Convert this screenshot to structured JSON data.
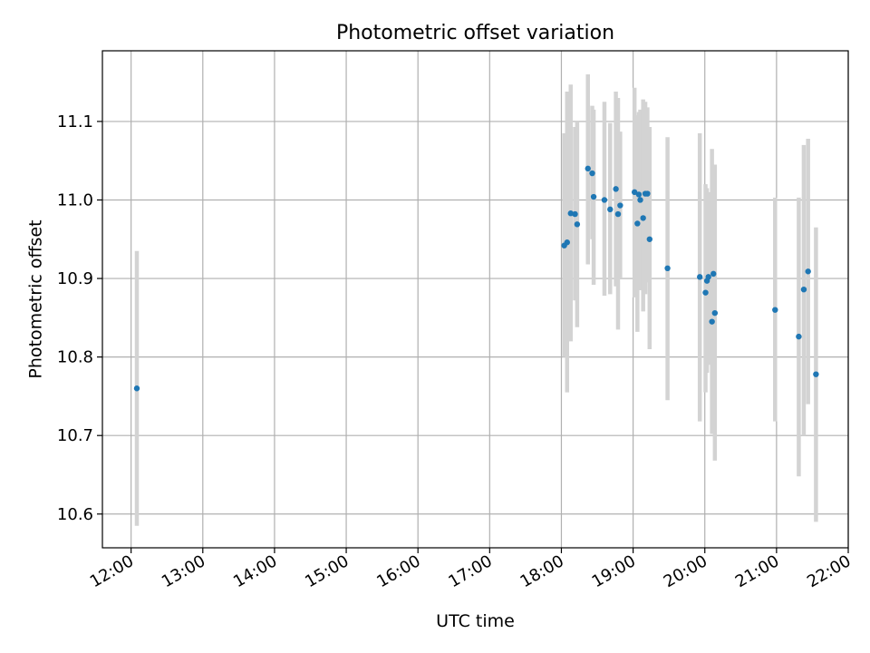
{
  "chart_data": {
    "type": "scatter",
    "title": "Photometric offset variation",
    "xlabel": "UTC time",
    "ylabel": "Photometric offset",
    "x_unit": "hours UTC",
    "xlim": [
      11.6,
      22.0
    ],
    "ylim": [
      10.557,
      11.19
    ],
    "grid": true,
    "legend": "none",
    "xticks": [
      {
        "value": 12,
        "label": "12:00"
      },
      {
        "value": 13,
        "label": "13:00"
      },
      {
        "value": 14,
        "label": "14:00"
      },
      {
        "value": 15,
        "label": "15:00"
      },
      {
        "value": 16,
        "label": "16:00"
      },
      {
        "value": 17,
        "label": "17:00"
      },
      {
        "value": 18,
        "label": "18:00"
      },
      {
        "value": 19,
        "label": "19:00"
      },
      {
        "value": 20,
        "label": "20:00"
      },
      {
        "value": 21,
        "label": "21:00"
      },
      {
        "value": 22,
        "label": "22:00"
      }
    ],
    "yticks": [
      {
        "value": 10.6,
        "label": "10.6"
      },
      {
        "value": 10.7,
        "label": "10.7"
      },
      {
        "value": 10.8,
        "label": "10.8"
      },
      {
        "value": 10.9,
        "label": "10.9"
      },
      {
        "value": 11.0,
        "label": "11.0"
      },
      {
        "value": 11.1,
        "label": "11.1"
      }
    ],
    "colors": {
      "points": "#1f77b4",
      "errorbars": "#d3d3d3",
      "grid": "#b0b0b0"
    },
    "series": [
      {
        "points": [
          {
            "x": 12.08,
            "y": 10.76,
            "lo": 10.585,
            "hi": 10.935
          },
          {
            "x": 18.04,
            "y": 10.942,
            "lo": 10.8,
            "hi": 11.085
          },
          {
            "x": 18.08,
            "y": 10.946,
            "lo": 10.755,
            "hi": 11.138
          },
          {
            "x": 18.13,
            "y": 10.983,
            "lo": 10.82,
            "hi": 11.147
          },
          {
            "x": 18.19,
            "y": 10.982,
            "lo": 10.872,
            "hi": 11.093
          },
          {
            "x": 18.22,
            "y": 10.969,
            "lo": 10.838,
            "hi": 11.1
          },
          {
            "x": 18.37,
            "y": 11.04,
            "lo": 10.918,
            "hi": 11.16
          },
          {
            "x": 18.43,
            "y": 11.034,
            "lo": 10.95,
            "hi": 11.12
          },
          {
            "x": 18.45,
            "y": 11.004,
            "lo": 10.892,
            "hi": 11.115
          },
          {
            "x": 18.6,
            "y": 11.0,
            "lo": 10.878,
            "hi": 11.125
          },
          {
            "x": 18.68,
            "y": 10.988,
            "lo": 10.88,
            "hi": 11.098
          },
          {
            "x": 18.76,
            "y": 11.014,
            "lo": 10.89,
            "hi": 11.138
          },
          {
            "x": 18.79,
            "y": 10.982,
            "lo": 10.835,
            "hi": 11.13
          },
          {
            "x": 18.82,
            "y": 10.993,
            "lo": 10.9,
            "hi": 11.087
          },
          {
            "x": 19.02,
            "y": 11.01,
            "lo": 10.876,
            "hi": 11.143
          },
          {
            "x": 19.06,
            "y": 10.97,
            "lo": 10.832,
            "hi": 11.108
          },
          {
            "x": 19.08,
            "y": 11.007,
            "lo": 10.89,
            "hi": 11.112
          },
          {
            "x": 19.1,
            "y": 11.0,
            "lo": 10.885,
            "hi": 11.115
          },
          {
            "x": 19.14,
            "y": 10.977,
            "lo": 10.858,
            "hi": 11.128
          },
          {
            "x": 19.17,
            "y": 11.008,
            "lo": 10.88,
            "hi": 11.125
          },
          {
            "x": 19.2,
            "y": 11.008,
            "lo": 10.895,
            "hi": 11.118
          },
          {
            "x": 19.23,
            "y": 10.95,
            "lo": 10.81,
            "hi": 11.093
          },
          {
            "x": 19.48,
            "y": 10.913,
            "lo": 10.745,
            "hi": 11.08
          },
          {
            "x": 19.93,
            "y": 10.902,
            "lo": 10.718,
            "hi": 11.085
          },
          {
            "x": 20.01,
            "y": 10.882,
            "lo": 10.755,
            "hi": 11.02
          },
          {
            "x": 20.03,
            "y": 10.897,
            "lo": 10.78,
            "hi": 11.015
          },
          {
            "x": 20.05,
            "y": 10.902,
            "lo": 10.79,
            "hi": 11.01
          },
          {
            "x": 20.1,
            "y": 10.845,
            "lo": 10.702,
            "hi": 11.065
          },
          {
            "x": 20.12,
            "y": 10.906,
            "lo": 10.76,
            "hi": 11.04
          },
          {
            "x": 20.14,
            "y": 10.856,
            "lo": 10.668,
            "hi": 11.045
          },
          {
            "x": 20.98,
            "y": 10.86,
            "lo": 10.718,
            "hi": 11.003
          },
          {
            "x": 21.31,
            "y": 10.826,
            "lo": 10.648,
            "hi": 11.003
          },
          {
            "x": 21.38,
            "y": 10.886,
            "lo": 10.7,
            "hi": 11.07
          },
          {
            "x": 21.44,
            "y": 10.909,
            "lo": 10.74,
            "hi": 11.078
          },
          {
            "x": 21.55,
            "y": 10.778,
            "lo": 10.59,
            "hi": 10.965
          }
        ]
      }
    ]
  }
}
